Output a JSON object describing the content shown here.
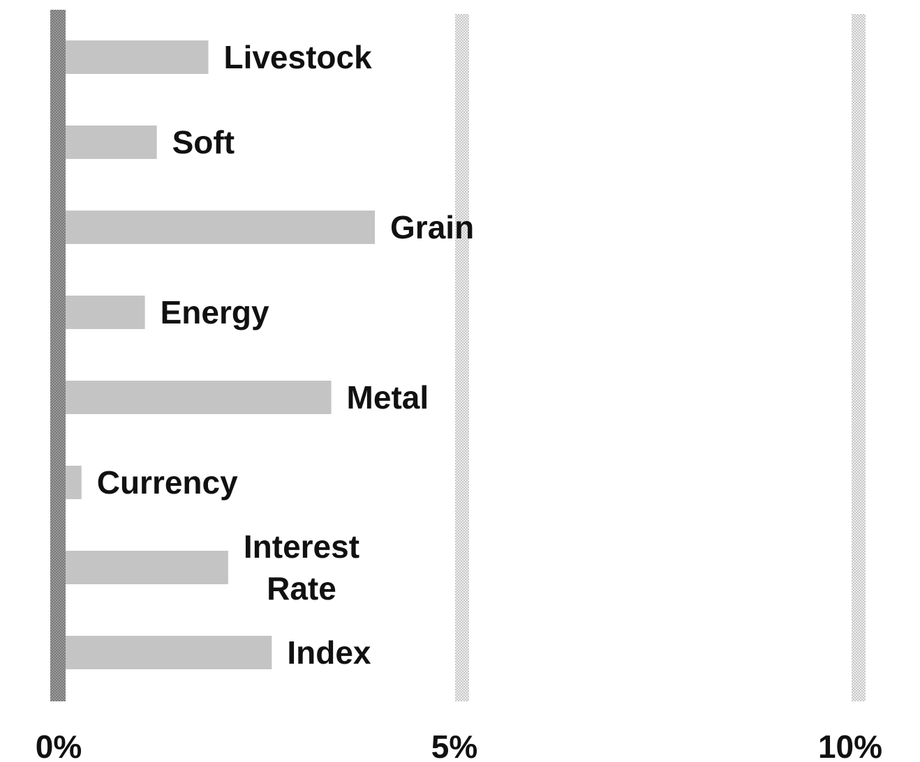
{
  "chart_data": {
    "type": "bar",
    "orientation": "horizontal",
    "categories": [
      [
        "Livestock"
      ],
      [
        "Soft"
      ],
      [
        "Grain"
      ],
      [
        "Energy"
      ],
      [
        "Metal"
      ],
      [
        "Currency"
      ],
      [
        "Interest",
        "Rate"
      ],
      [
        "Index"
      ]
    ],
    "values": [
      1.8,
      1.15,
      3.9,
      1.0,
      3.35,
      0.2,
      2.05,
      2.6
    ],
    "title": "",
    "xlabel": "",
    "ylabel": "",
    "xlim": [
      0,
      10
    ],
    "xticks": [
      0,
      5,
      10
    ],
    "xtick_labels": [
      "0%",
      "5%",
      "10%"
    ],
    "grid": "vertical dotted at 5% and 10%",
    "legend": "none",
    "colors": {
      "bar": "#c4c4c4",
      "zero_axis": "#8c8c8c",
      "gridline": "#d9d9d9",
      "text": "#111111"
    }
  }
}
